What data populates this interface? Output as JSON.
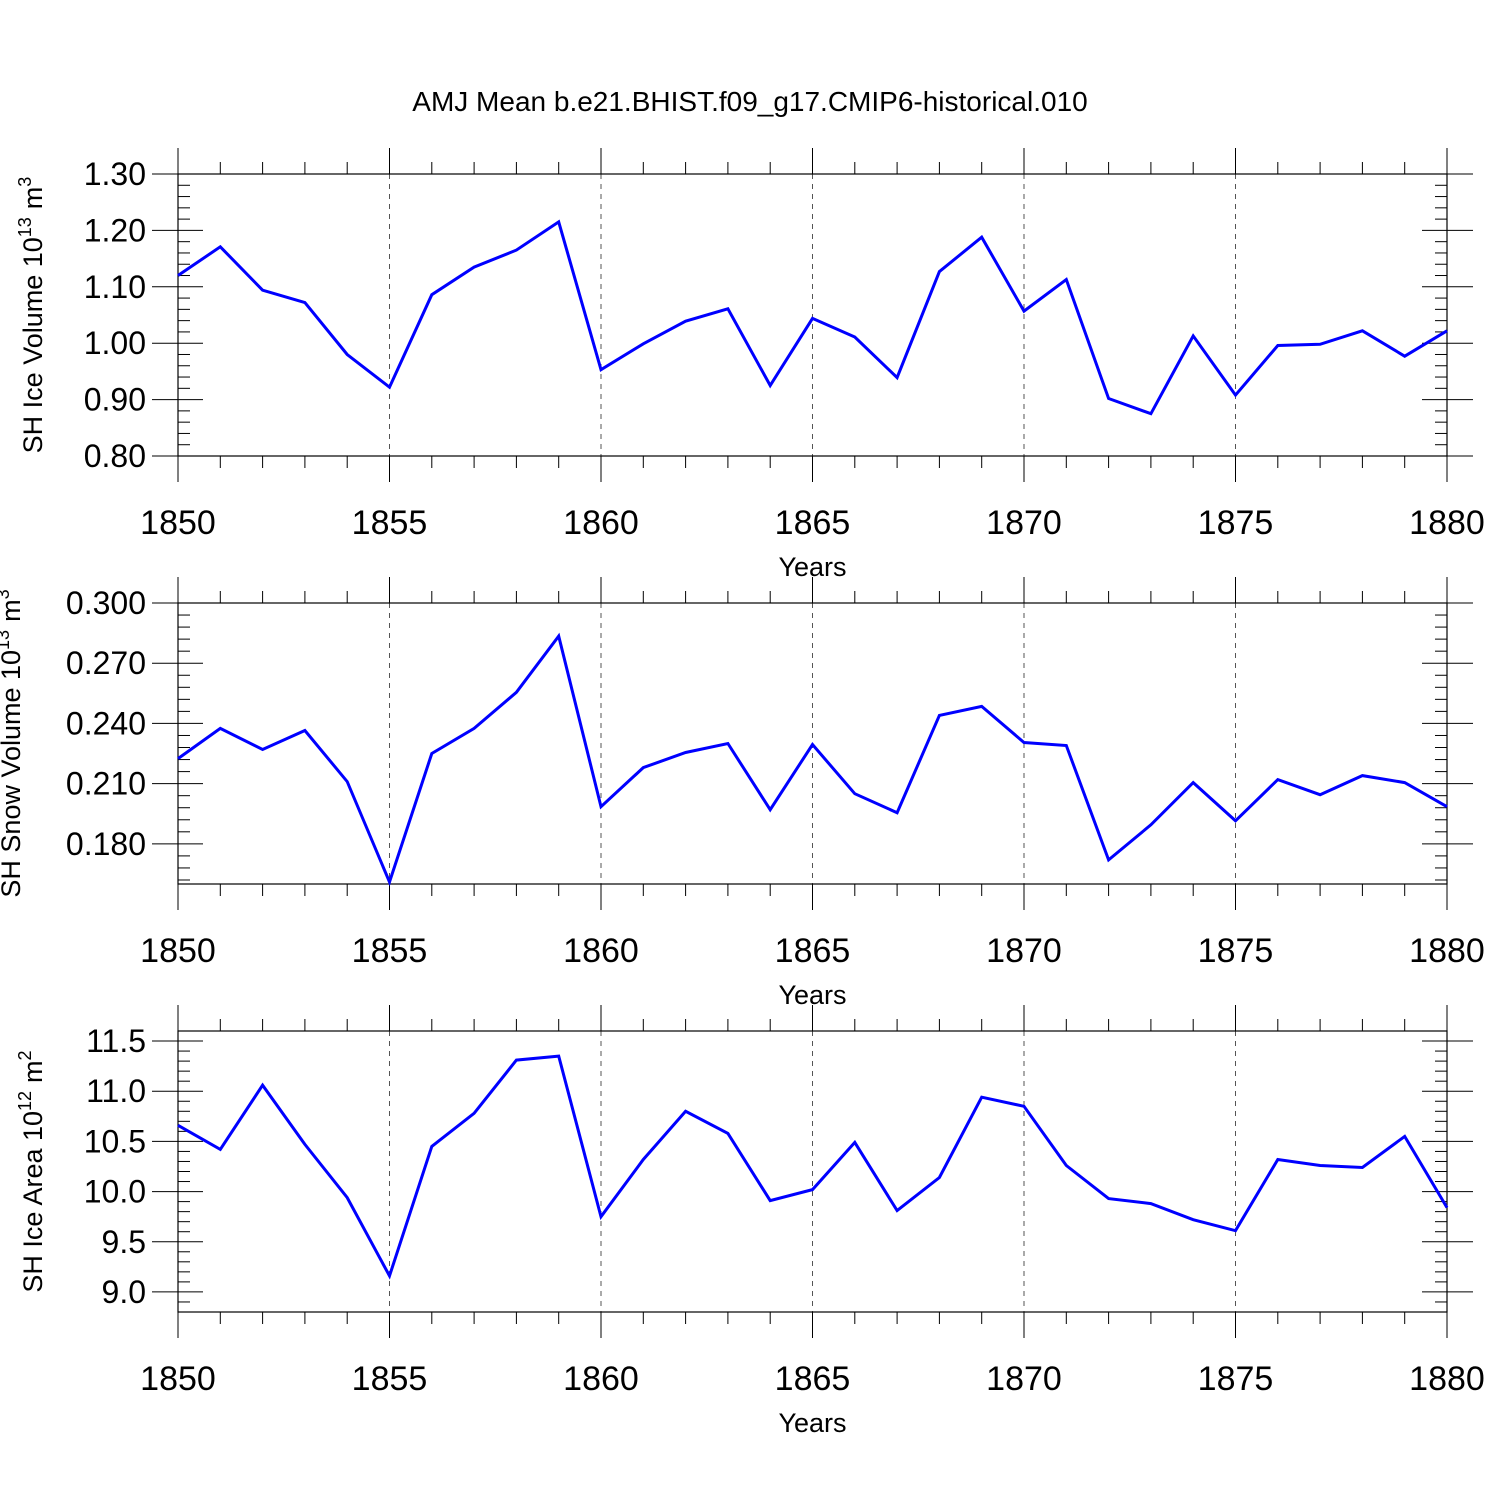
{
  "title": "AMJ Mean b.e21.BHIST.f09_g17.CMIP6-historical.010",
  "colors": {
    "series": "#0000ff",
    "axis": "#000000",
    "grid": "#555555"
  },
  "chart_data": [
    {
      "type": "line",
      "ylabel": "SH Ice Volume 10",
      "ylabel_exp": "13",
      "ylabel_unit": "m",
      "ylabel_unit_exp": "3",
      "xlabel": "Years",
      "xlim": [
        1850,
        1880
      ],
      "ylim": [
        0.8,
        1.3
      ],
      "x_ticks": [
        "1850",
        "1855",
        "1860",
        "1865",
        "1870",
        "1875",
        "1880"
      ],
      "y_ticks": [
        "0.80",
        "0.90",
        "1.00",
        "1.10",
        "1.20",
        "1.30"
      ],
      "grid": "vertical dashed at major x ticks",
      "series": [
        {
          "x": [
            1850,
            1851,
            1852,
            1853,
            1854,
            1855,
            1856,
            1857,
            1858,
            1859,
            1860,
            1861,
            1862,
            1863,
            1864,
            1865,
            1866,
            1867,
            1868,
            1869,
            1870,
            1871,
            1872,
            1873,
            1874,
            1875,
            1876,
            1877,
            1878,
            1879,
            1880
          ],
          "values": [
            1.12,
            1.171,
            1.094,
            1.072,
            0.98,
            0.922,
            1.086,
            1.135,
            1.165,
            1.215,
            0.953,
            0.999,
            1.039,
            1.061,
            0.925,
            1.044,
            1.011,
            0.939,
            1.127,
            1.188,
            1.057,
            1.113,
            0.902,
            0.875,
            1.013,
            0.908,
            0.996,
            0.998,
            1.022,
            0.977,
            1.022
          ]
        }
      ]
    },
    {
      "type": "line",
      "ylabel": "SH Snow Volume 10",
      "ylabel_exp": "13",
      "ylabel_unit": "m",
      "ylabel_unit_exp": "3",
      "xlabel": "Years",
      "xlim": [
        1850,
        1880
      ],
      "ylim": [
        0.16,
        0.3
      ],
      "x_ticks": [
        "1850",
        "1855",
        "1860",
        "1865",
        "1870",
        "1875",
        "1880"
      ],
      "y_ticks": [
        "0.180",
        "0.210",
        "0.240",
        "0.270",
        "0.300"
      ],
      "grid": "vertical dashed at major x ticks",
      "series": [
        {
          "x": [
            1850,
            1851,
            1852,
            1853,
            1854,
            1855,
            1856,
            1857,
            1858,
            1859,
            1860,
            1861,
            1862,
            1863,
            1864,
            1865,
            1866,
            1867,
            1868,
            1869,
            1870,
            1871,
            1872,
            1873,
            1874,
            1875,
            1876,
            1877,
            1878,
            1879,
            1880
          ],
          "values": [
            0.2225,
            0.2375,
            0.227,
            0.2365,
            0.211,
            0.161,
            0.225,
            0.2375,
            0.2555,
            0.2835,
            0.1985,
            0.218,
            0.2255,
            0.23,
            0.197,
            0.2295,
            0.205,
            0.1955,
            0.244,
            0.2485,
            0.2305,
            0.229,
            0.172,
            0.1895,
            0.2105,
            0.1915,
            0.212,
            0.2045,
            0.214,
            0.2105,
            0.1985
          ]
        }
      ]
    },
    {
      "type": "line",
      "ylabel": "SH Ice Area 10",
      "ylabel_exp": "12",
      "ylabel_unit": "m",
      "ylabel_unit_exp": "2",
      "xlabel": "Years",
      "xlim": [
        1850,
        1880
      ],
      "ylim": [
        8.8,
        11.6
      ],
      "x_ticks": [
        "1850",
        "1855",
        "1860",
        "1865",
        "1870",
        "1875",
        "1880"
      ],
      "y_ticks": [
        "9.0",
        "9.5",
        "10.0",
        "10.5",
        "11.0",
        "11.5"
      ],
      "grid": "vertical dashed at major x ticks",
      "series": [
        {
          "x": [
            1850,
            1851,
            1852,
            1853,
            1854,
            1855,
            1856,
            1857,
            1858,
            1859,
            1860,
            1861,
            1862,
            1863,
            1864,
            1865,
            1866,
            1867,
            1868,
            1869,
            1870,
            1871,
            1872,
            1873,
            1874,
            1875,
            1876,
            1877,
            1878,
            1879,
            1880
          ],
          "values": [
            10.66,
            10.42,
            11.06,
            10.47,
            9.94,
            9.16,
            10.45,
            10.78,
            11.31,
            11.35,
            9.75,
            10.32,
            10.8,
            10.58,
            9.91,
            10.02,
            10.49,
            9.81,
            10.14,
            10.94,
            10.85,
            10.26,
            9.93,
            9.88,
            9.72,
            9.61,
            10.32,
            10.26,
            10.24,
            10.55,
            9.84
          ]
        }
      ]
    }
  ]
}
